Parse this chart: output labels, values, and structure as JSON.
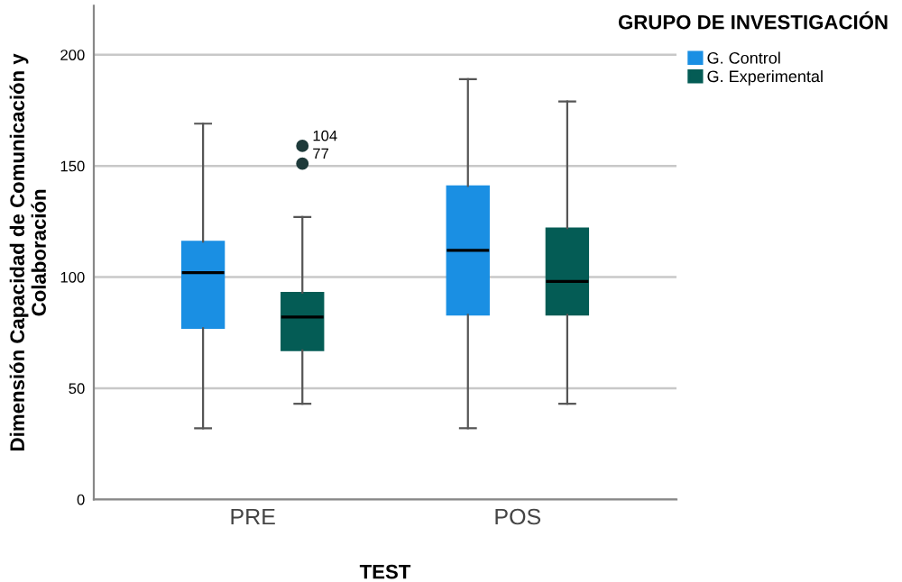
{
  "chart_data": {
    "type": "box",
    "xlabel": "TEST",
    "ylabel": "Dimensión Capacidad de Comunicación y Colaboración",
    "legend_title": "GRUPO DE INVESTIGACIÓN",
    "legend": "top right",
    "grid": "y",
    "categories": [
      "PRE",
      "POS"
    ],
    "ylim": [
      0,
      222
    ],
    "yticks": [
      0,
      50,
      100,
      150,
      200
    ],
    "series": [
      {
        "name": "G. Control",
        "color": "#1a8fe3",
        "boxes": [
          {
            "low": 32,
            "q1": 77,
            "median": 102,
            "q3": 116,
            "high": 169
          },
          {
            "low": 32,
            "q1": 83,
            "median": 112,
            "q3": 141,
            "high": 189
          }
        ]
      },
      {
        "name": "G. Experimental",
        "color": "#045c55",
        "boxes": [
          {
            "low": 43,
            "q1": 67,
            "median": 82,
            "q3": 93,
            "high": 127,
            "outliers": [
              159,
              151
            ]
          },
          {
            "low": 43,
            "q1": 83,
            "median": 98,
            "q3": 122,
            "high": 179
          }
        ]
      }
    ],
    "annotations": [
      "104",
      "77"
    ]
  }
}
